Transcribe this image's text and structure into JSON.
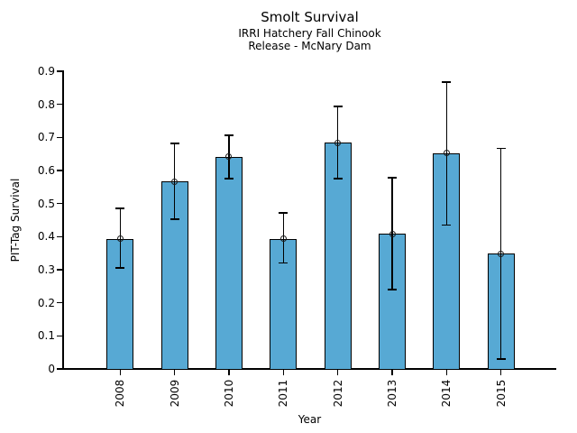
{
  "title": "Smolt Survival",
  "subtitle_line1": "IRRI Hatchery Fall Chinook",
  "subtitle_line2": "Release - McNary Dam",
  "chart_data": {
    "type": "bar",
    "title": "Smolt Survival",
    "subtitle": [
      "IRRI Hatchery Fall Chinook",
      "Release - McNary Dam"
    ],
    "xlabel": "Year",
    "ylabel": "PIT-Tag Survival",
    "categories": [
      "2008",
      "2009",
      "2010",
      "2011",
      "2012",
      "2013",
      "2014",
      "2015"
    ],
    "values": [
      0.394,
      0.567,
      0.641,
      0.394,
      0.684,
      0.409,
      0.652,
      0.348
    ],
    "error_upper": [
      0.485,
      0.682,
      0.706,
      0.472,
      0.794,
      0.578,
      0.867,
      0.667
    ],
    "error_lower": [
      0.305,
      0.453,
      0.575,
      0.32,
      0.576,
      0.24,
      0.435,
      0.03
    ],
    "ylim": [
      0,
      0.9
    ],
    "yticks": [
      0,
      0.1,
      0.2,
      0.3,
      0.4,
      0.5,
      0.6,
      0.7,
      0.8,
      0.9
    ],
    "grid": false,
    "legend": false,
    "marker": "open-circle",
    "bar_color": "#57A9D4",
    "bar_edge_color": "#000000",
    "error_color": "#000000",
    "background_color": "#ffffff"
  }
}
